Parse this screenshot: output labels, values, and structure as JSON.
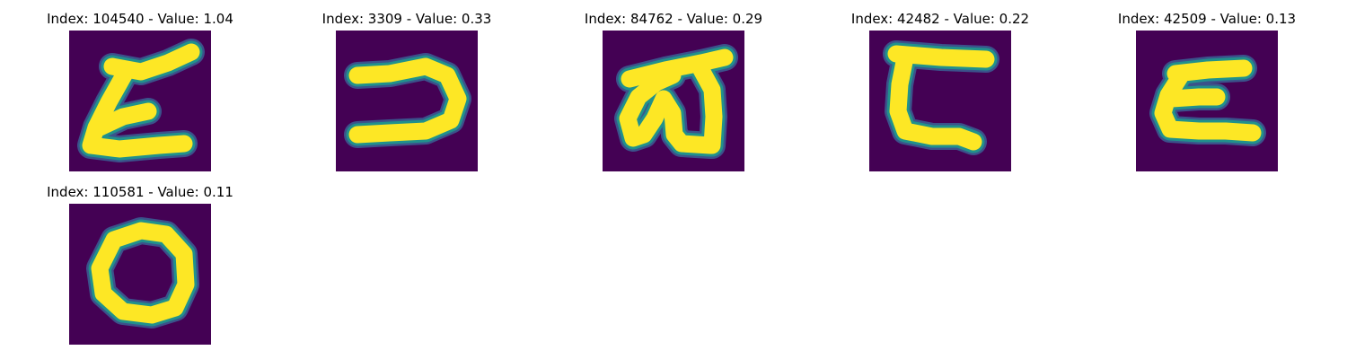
{
  "colors": {
    "background": "#440154",
    "ink": "#fde725",
    "edge_teal": "#21918c",
    "edge_blue": "#3b528b"
  },
  "panels": [
    {
      "title": "Index: 104540 - Value: 1.04",
      "glyph": "swoosh-z"
    },
    {
      "title": "Index: 3309 - Value: 0.33",
      "glyph": "hook-c"
    },
    {
      "title": "Index: 84762 - Value: 0.29",
      "glyph": "loop-a"
    },
    {
      "title": "Index: 42482 - Value: 0.22",
      "glyph": "bracket-c"
    },
    {
      "title": "Index: 42509 - Value: 0.13",
      "glyph": "bracket-e"
    },
    {
      "title": "Index: 110581 - Value: 0.11",
      "glyph": "ring-o"
    }
  ]
}
